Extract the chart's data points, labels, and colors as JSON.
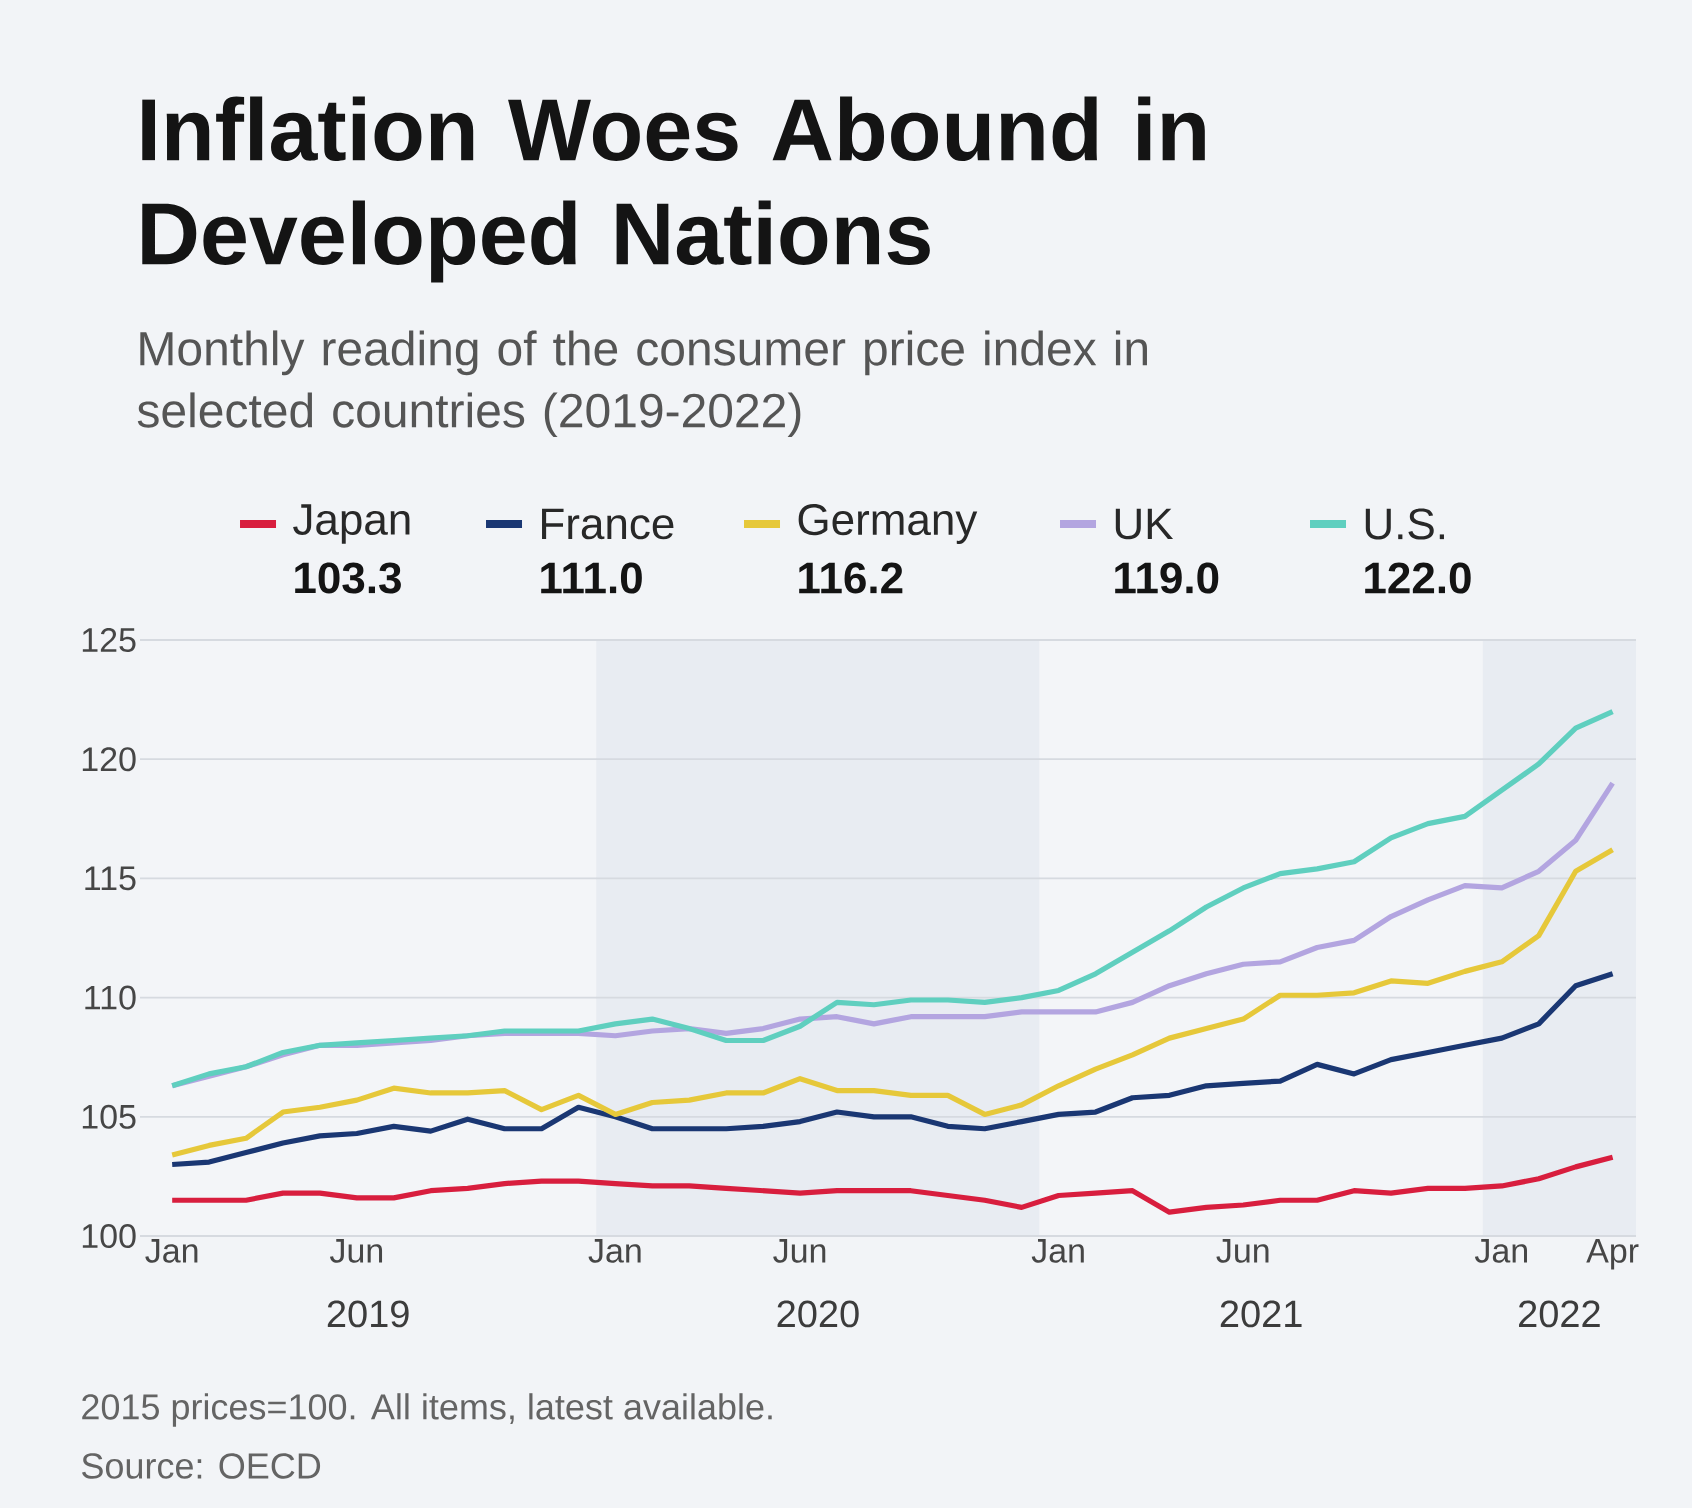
{
  "chart_data": {
    "type": "line",
    "title": "Inflation Woes Abound in Developed Nations",
    "subtitle": "Monthly reading of the consumer price index in selected countries (2019-2022)",
    "x": [
      "2019-01",
      "2019-02",
      "2019-03",
      "2019-04",
      "2019-05",
      "2019-06",
      "2019-07",
      "2019-08",
      "2019-09",
      "2019-10",
      "2019-11",
      "2019-12",
      "2020-01",
      "2020-02",
      "2020-03",
      "2020-04",
      "2020-05",
      "2020-06",
      "2020-07",
      "2020-08",
      "2020-09",
      "2020-10",
      "2020-11",
      "2020-12",
      "2021-01",
      "2021-02",
      "2021-03",
      "2021-04",
      "2021-05",
      "2021-06",
      "2021-07",
      "2021-08",
      "2021-09",
      "2021-10",
      "2021-11",
      "2021-12",
      "2022-01",
      "2022-02",
      "2022-03",
      "2022-04"
    ],
    "series": [
      {
        "name": "Japan",
        "color": "#d81e3e",
        "values": [
          101.5,
          101.5,
          101.5,
          101.8,
          101.8,
          101.6,
          101.6,
          101.9,
          102.0,
          102.2,
          102.3,
          102.3,
          102.2,
          102.1,
          102.1,
          102.0,
          101.9,
          101.8,
          101.9,
          101.9,
          101.9,
          101.7,
          101.5,
          101.2,
          101.7,
          101.8,
          101.9,
          101.0,
          101.2,
          101.3,
          101.5,
          101.5,
          101.9,
          101.8,
          102.0,
          102.0,
          102.1,
          102.4,
          102.9,
          103.3
        ]
      },
      {
        "name": "France",
        "color": "#1a3773",
        "values": [
          103.0,
          103.1,
          103.5,
          103.9,
          104.2,
          104.3,
          104.6,
          104.4,
          104.9,
          104.5,
          104.5,
          105.4,
          105.0,
          104.5,
          104.5,
          104.5,
          104.6,
          104.8,
          105.2,
          105.0,
          105.0,
          104.6,
          104.5,
          104.8,
          105.1,
          105.2,
          105.8,
          105.9,
          106.3,
          106.4,
          106.5,
          107.2,
          106.8,
          107.4,
          107.7,
          108.0,
          108.3,
          108.9,
          110.5,
          111.0
        ]
      },
      {
        "name": "Germany",
        "color": "#e6c83a",
        "values": [
          103.4,
          103.8,
          104.1,
          105.2,
          105.4,
          105.7,
          106.2,
          106.0,
          106.0,
          106.1,
          105.3,
          105.9,
          105.1,
          105.6,
          105.7,
          106.0,
          106.0,
          106.6,
          106.1,
          106.1,
          105.9,
          105.9,
          105.1,
          105.5,
          106.3,
          107.0,
          107.6,
          108.3,
          108.7,
          109.1,
          110.1,
          110.1,
          110.2,
          110.7,
          110.6,
          111.1,
          111.5,
          112.6,
          115.3,
          116.2
        ]
      },
      {
        "name": "UK",
        "color": "#b3a5e0",
        "values": [
          106.3,
          106.7,
          107.1,
          107.6,
          108.0,
          108.0,
          108.1,
          108.2,
          108.4,
          108.5,
          108.5,
          108.5,
          108.4,
          108.6,
          108.7,
          108.5,
          108.7,
          109.1,
          109.2,
          108.9,
          109.2,
          109.2,
          109.2,
          109.4,
          109.4,
          109.4,
          109.8,
          110.5,
          111.0,
          111.4,
          111.5,
          112.1,
          112.4,
          113.4,
          114.1,
          114.7,
          114.6,
          115.3,
          116.6,
          119.0
        ]
      },
      {
        "name": "U.S.",
        "color": "#5fcfbf",
        "values": [
          106.3,
          106.8,
          107.1,
          107.7,
          108.0,
          108.1,
          108.2,
          108.3,
          108.4,
          108.6,
          108.6,
          108.6,
          108.9,
          109.1,
          108.7,
          108.2,
          108.2,
          108.8,
          109.8,
          109.7,
          109.9,
          109.9,
          109.8,
          110.0,
          110.3,
          111.0,
          111.9,
          112.8,
          113.8,
          114.6,
          115.2,
          115.4,
          115.7,
          116.7,
          117.3,
          117.6,
          118.7,
          119.8,
          121.3,
          122.0
        ]
      }
    ],
    "xlim": [
      "2018-12-05",
      "2022-04-20"
    ],
    "xticks": [
      {
        "value": "2019-01",
        "label": "Jan"
      },
      {
        "value": "2019-06",
        "label": "Jun"
      },
      {
        "value": "2020-01",
        "label": "Jan"
      },
      {
        "value": "2020-06",
        "label": "Jun"
      },
      {
        "value": "2021-01",
        "label": "Jan"
      },
      {
        "value": "2021-06",
        "label": "Jun"
      },
      {
        "value": "2022-01",
        "label": "Jan"
      },
      {
        "value": "2022-04",
        "label": "Apr"
      }
    ],
    "ylim": [
      100,
      125
    ],
    "yticks": [
      100,
      105,
      110,
      115,
      120,
      125
    ],
    "bands": [
      {
        "axis": "x",
        "from": "2018-12-05",
        "to": "2019-12-16",
        "label": "2019",
        "color": "#f3f5f8"
      },
      {
        "axis": "x",
        "from": "2019-12-16",
        "to": "2020-12-16",
        "label": "2020",
        "color": "#e8ecf2"
      },
      {
        "axis": "x",
        "from": "2020-12-16",
        "to": "2021-12-16",
        "label": "2021",
        "color": "#f3f5f8"
      },
      {
        "axis": "x",
        "from": "2021-12-16",
        "to": "2022-04-20",
        "label": "2022",
        "color": "#e8ecf2"
      }
    ],
    "grid": "y",
    "legend": "top",
    "annotations": [
      "103.3",
      "111.0",
      "116.2",
      "119.0",
      "122.0",
      "2015 prices=100. All items, latest available.",
      "Source: OECD"
    ]
  }
}
